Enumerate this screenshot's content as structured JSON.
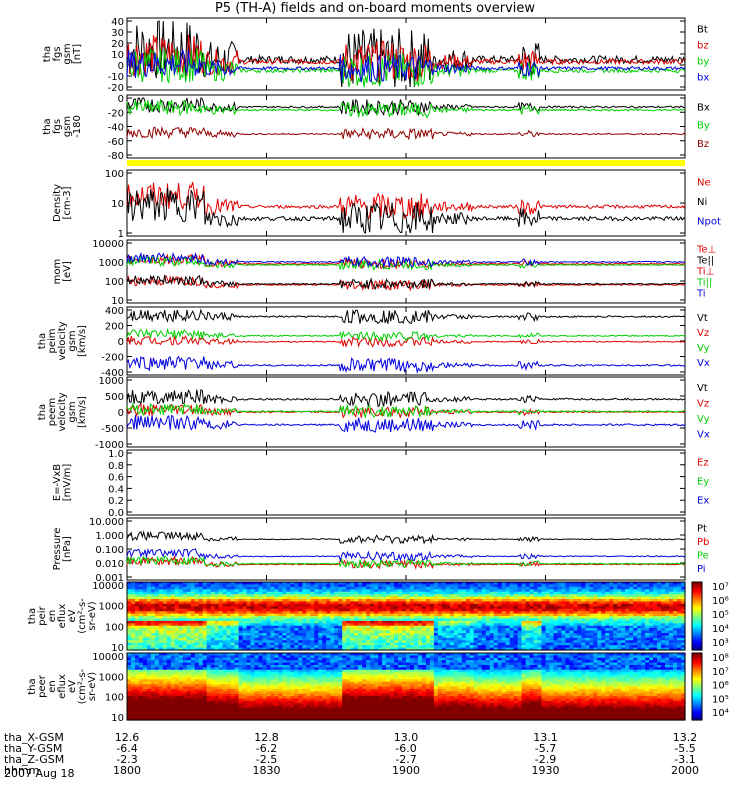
{
  "title": "P5 (TH-A) fields and on-board moments overview",
  "colors": {
    "black": "#000000",
    "red": "#e00000",
    "green": "#00d000",
    "blue": "#0000e0",
    "darkred": "#900000",
    "yellow": "#ffff00"
  },
  "chart_data": [
    {
      "type": "line",
      "ylabel": [
        "tha",
        "fgs",
        "gsm",
        "[nT]"
      ],
      "yticks": [
        "40",
        "30",
        "20",
        "10",
        "0",
        "-10",
        "-20"
      ],
      "ylim": [
        -20,
        40
      ],
      "series": [
        {
          "name": "Bt",
          "color": "black",
          "base": 5,
          "amp": 18
        },
        {
          "name": "bz",
          "color": "red",
          "base": 3,
          "amp": 12
        },
        {
          "name": "by",
          "color": "green",
          "base": -5,
          "amp": 10
        },
        {
          "name": "bx",
          "color": "blue",
          "base": -3,
          "amp": 8
        }
      ]
    },
    {
      "type": "line",
      "ylabel": [
        "tha",
        "fgs",
        "gsm",
        "-180"
      ],
      "yticks": [
        "0",
        "-20",
        "-40",
        "-60",
        "-80"
      ],
      "ylim": [
        -90,
        5
      ],
      "series": [
        {
          "name": "Bx",
          "color": "black",
          "base": -10,
          "amp": 8
        },
        {
          "name": "By",
          "color": "green",
          "base": -15,
          "amp": 8
        },
        {
          "name": "Bz",
          "color": "darkred",
          "base": -55,
          "amp": 6
        }
      ]
    },
    {
      "type": "line",
      "ylabel": [
        "Density",
        "[cm-3]"
      ],
      "yticks": [
        "100",
        "10",
        "1"
      ],
      "ylim": [
        0.7,
        300
      ],
      "scale": "log",
      "series": [
        {
          "name": "Ne",
          "color": "red",
          "base": 10,
          "amp": 0.4
        },
        {
          "name": "Ni",
          "color": "black",
          "base": 3,
          "amp": 0.5
        },
        {
          "name": "Npot",
          "color": "blue"
        }
      ]
    },
    {
      "type": "line",
      "ylabel": [
        "mom",
        "[eV]"
      ],
      "yticks": [
        "10000",
        "1000",
        "100",
        "10"
      ],
      "ylim": [
        5,
        12000
      ],
      "scale": "log",
      "series": [
        {
          "name": "Te⊥",
          "color": "red",
          "base": 40,
          "amp": 0.2
        },
        {
          "name": "Te||",
          "color": "black",
          "base": 45,
          "amp": 0.2
        },
        {
          "name": "Ti⊥",
          "color": "red",
          "base": 700,
          "amp": 0.2
        },
        {
          "name": "Ti||",
          "color": "green",
          "base": 600,
          "amp": 0.2
        },
        {
          "name": "Ti",
          "color": "blue",
          "base": 900,
          "amp": 0.2
        }
      ]
    },
    {
      "type": "line",
      "ylabel": [
        "tha",
        "peim",
        "velocity",
        "gsm",
        "[km/s]"
      ],
      "yticks": [
        "400",
        "200",
        "0",
        "-200",
        "-400"
      ],
      "ylim": [
        -420,
        420
      ],
      "series": [
        {
          "name": "Vt",
          "color": "black",
          "base": 330,
          "amp": 60
        },
        {
          "name": "Vz",
          "color": "red",
          "base": -10,
          "amp": 40
        },
        {
          "name": "Vy",
          "color": "green",
          "base": 70,
          "amp": 40
        },
        {
          "name": "Vx",
          "color": "blue",
          "base": -330,
          "amp": 60
        }
      ]
    },
    {
      "type": "line",
      "ylabel": [
        "tha",
        "peem",
        "velocity",
        "gsm",
        "[km/s]"
      ],
      "yticks": [
        "1000",
        "500",
        "0",
        "-500",
        "-1000"
      ],
      "ylim": [
        -1050,
        1050
      ],
      "series": [
        {
          "name": "Vt",
          "color": "black",
          "base": 420,
          "amp": 150
        },
        {
          "name": "Vz",
          "color": "red",
          "base": 0,
          "amp": 120
        },
        {
          "name": "Vy",
          "color": "green",
          "base": 20,
          "amp": 120
        },
        {
          "name": "Vx",
          "color": "blue",
          "base": -420,
          "amp": 150
        }
      ]
    },
    {
      "type": "line",
      "ylabel": [
        "E=-VxB",
        "[mV/m]"
      ],
      "yticks": [
        "1.0",
        "0.8",
        "0.6",
        "0.4",
        "0.2",
        "0.0"
      ],
      "ylim": [
        0,
        1
      ],
      "series": [
        {
          "name": "Ez",
          "color": "red"
        },
        {
          "name": "Ey",
          "color": "green"
        },
        {
          "name": "Ex",
          "color": "blue"
        }
      ]
    },
    {
      "type": "line",
      "ylabel": [
        "Pressure",
        "[nPa]"
      ],
      "yticks": [
        "10.000",
        "1.000",
        "0.100",
        "0.010",
        "0.001"
      ],
      "ylim": [
        0.001,
        10
      ],
      "scale": "log",
      "series": [
        {
          "name": "Pt",
          "color": "black",
          "base": 0.5,
          "amp": 0.2
        },
        {
          "name": "Pb",
          "color": "red",
          "base": 0.008,
          "amp": 0.2
        },
        {
          "name": "Pe",
          "color": "green",
          "base": 0.009,
          "amp": 0.2
        },
        {
          "name": "Pi",
          "color": "blue",
          "base": 0.03,
          "amp": 0.2
        }
      ]
    },
    {
      "type": "heatmap",
      "ylabel": [
        "tha",
        "peir",
        "en",
        "eflux",
        "eV",
        "(cm²-s-",
        "sr-eV)"
      ],
      "yticks": [
        "10000",
        "1000",
        "100",
        "10"
      ],
      "ylim": [
        10,
        20000
      ],
      "scale": "log",
      "colorbar": [
        "10⁷",
        "10⁶",
        "10⁵",
        "10⁴",
        "10³"
      ]
    },
    {
      "type": "heatmap",
      "ylabel": [
        "tha",
        "peer",
        "en",
        "eflux",
        "eV",
        "(cm²-s-",
        "sr-eV)"
      ],
      "yticks": [
        "10000",
        "1000",
        "100",
        "10"
      ],
      "ylim": [
        7,
        20000
      ],
      "scale": "log",
      "colorbar": [
        "10⁸",
        "10⁷",
        "10⁶",
        "10⁵",
        "10⁴"
      ]
    }
  ],
  "xaxis": {
    "rows": [
      {
        "label": "tha_X-GSM",
        "values": [
          "12.6",
          "12.8",
          "13.0",
          "13.1",
          "13.2"
        ]
      },
      {
        "label": "tha_Y-GSM",
        "values": [
          "-6.4",
          "-6.2",
          "-6.0",
          "-5.7",
          "-5.5"
        ]
      },
      {
        "label": "tha_Z-GSM",
        "values": [
          "-2.3",
          "-2.5",
          "-2.7",
          "-2.9",
          "-3.1"
        ]
      },
      {
        "label": "hhmm",
        "values": [
          "1800",
          "1830",
          "1900",
          "1930",
          "2000"
        ]
      }
    ],
    "date": "2007 Aug 18"
  }
}
